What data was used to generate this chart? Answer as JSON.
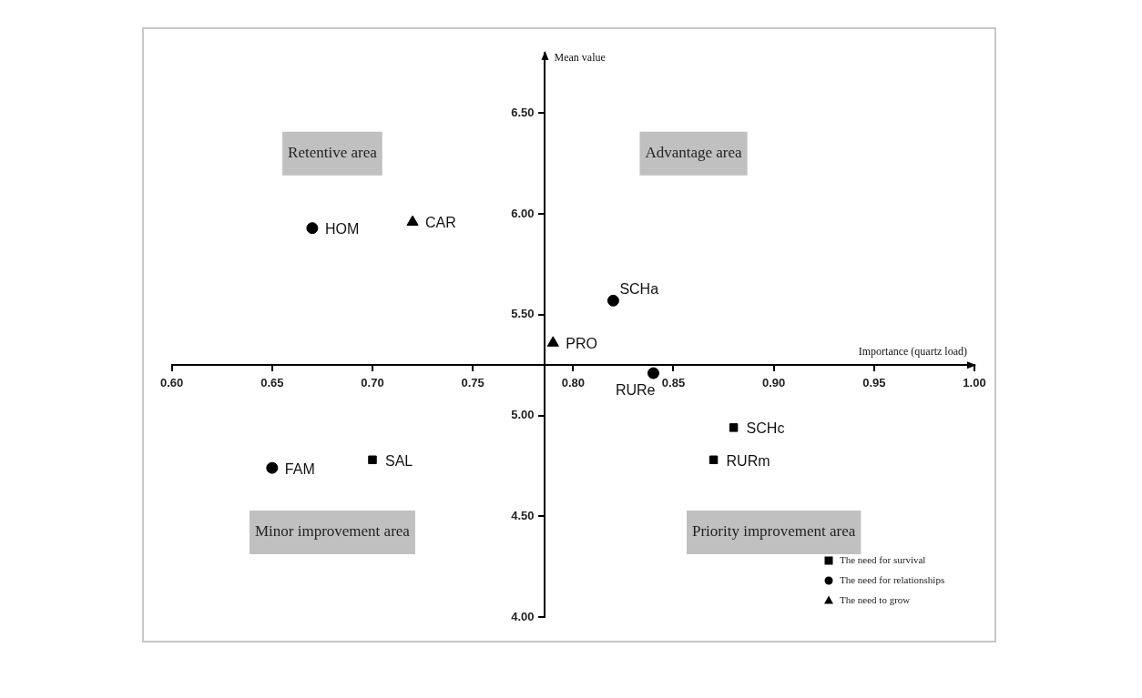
{
  "chart_data": {
    "type": "scatter",
    "xlabel": "Importance (quartz load)",
    "ylabel": "Mean value",
    "xlim": [
      0.6,
      1.0
    ],
    "ylim": [
      4.0,
      6.8
    ],
    "xticks": [
      {
        "value": 0.6,
        "label": "0.60"
      },
      {
        "value": 0.65,
        "label": "0.65"
      },
      {
        "value": 0.7,
        "label": "0.70"
      },
      {
        "value": 0.75,
        "label": "0.75"
      },
      {
        "value": 0.8,
        "label": "0.80"
      },
      {
        "value": 0.85,
        "label": "0.85"
      },
      {
        "value": 0.9,
        "label": "0.90"
      },
      {
        "value": 0.95,
        "label": "0.95"
      },
      {
        "value": 1.0,
        "label": "1.00"
      }
    ],
    "yticks": [
      {
        "value": 4.0,
        "label": "4.00"
      },
      {
        "value": 4.5,
        "label": "4.50"
      },
      {
        "value": 5.0,
        "label": "5.00"
      },
      {
        "value": 5.5,
        "label": "5.50"
      },
      {
        "value": 6.0,
        "label": "6.00"
      },
      {
        "value": 6.5,
        "label": "6.50"
      }
    ],
    "series": [
      {
        "name": "The need for survival",
        "color": "#000000",
        "marker": "square",
        "x": [
          0.7,
          0.88,
          0.87
        ],
        "values": [
          4.78,
          4.94,
          4.78
        ]
      },
      {
        "name": "The need for relationships",
        "color": "#000000",
        "marker": "circle",
        "x": [
          0.67,
          0.82,
          0.84,
          0.65
        ],
        "values": [
          5.93,
          5.57,
          5.21,
          4.74
        ]
      },
      {
        "name": "The need to grow",
        "color": "#000000",
        "marker": "triangle",
        "x": [
          0.72,
          0.79
        ],
        "values": [
          5.96,
          5.36
        ]
      }
    ],
    "annotations": [
      "Retentive area",
      "Advantage area",
      "Minor improvement area",
      "Priority improvement area",
      {
        "text": "SAL",
        "x": 0.7,
        "y": 4.78
      },
      {
        "text": "SCHc",
        "x": 0.88,
        "y": 4.94
      },
      {
        "text": "RURm",
        "x": 0.87,
        "y": 4.78
      },
      {
        "text": "HOM",
        "x": 0.67,
        "y": 5.93
      },
      {
        "text": "SCHa",
        "x": 0.82,
        "y": 5.57
      },
      {
        "text": "RURe",
        "x": 0.84,
        "y": 5.21
      },
      {
        "text": "FAM",
        "x": 0.65,
        "y": 4.74
      },
      {
        "text": "CAR",
        "x": 0.72,
        "y": 5.96
      },
      {
        "text": "PRO",
        "x": 0.79,
        "y": 5.36
      }
    ],
    "legend": "bottom right",
    "grid": false
  }
}
